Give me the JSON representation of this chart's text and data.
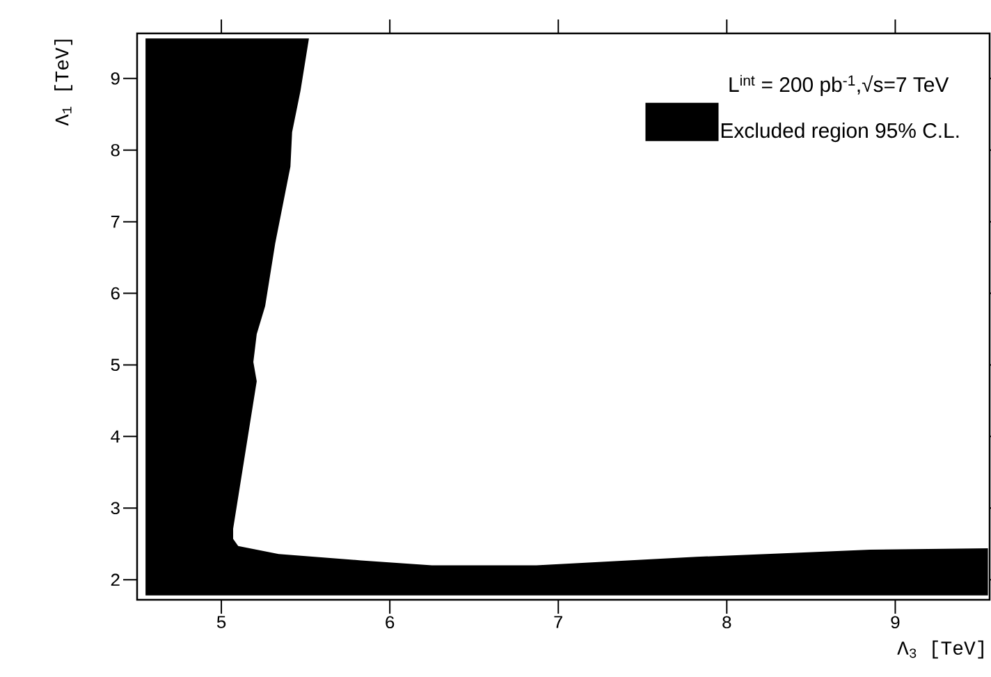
{
  "chart_data": {
    "type": "area",
    "xlabel": "Λ$_{3}$  [TeV]",
    "ylabel": "Λ$_{1}$  [TeV]",
    "annotations": [
      "L$^{int}$ = 200 pb$^{-1}$,√s=7 TeV"
    ],
    "series": [
      {
        "name": "Excluded region 95% C.L.",
        "color": "#000000",
        "x": [
          4.55,
          5.52,
          5.47,
          5.42,
          5.41,
          5.32,
          5.26,
          5.21,
          5.19,
          5.21,
          5.07,
          5.07,
          5.1,
          5.34,
          5.83,
          6.25,
          6.87,
          7.82,
          8.36,
          8.85,
          9.55,
          9.55,
          4.55
        ],
        "values": [
          9.56,
          9.56,
          8.83,
          8.25,
          7.77,
          6.7,
          5.82,
          5.43,
          5.04,
          4.77,
          2.71,
          2.57,
          2.47,
          2.36,
          2.27,
          2.2,
          2.2,
          2.32,
          2.37,
          2.42,
          2.44,
          1.78,
          1.78
        ]
      }
    ],
    "xlim": [
      4.5,
      9.56
    ],
    "ylim": [
      1.72,
      9.63
    ],
    "xticks": [
      5,
      6,
      7,
      8,
      9
    ],
    "yticks": [
      2,
      3,
      4,
      5,
      6,
      7,
      8,
      9
    ],
    "legend": "top right"
  }
}
